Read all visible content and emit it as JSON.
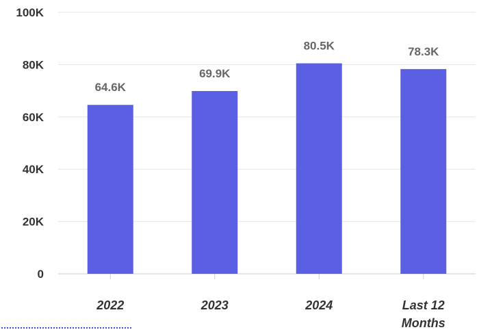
{
  "chart_data": {
    "type": "bar",
    "categories": [
      "2022",
      "2023",
      "2024",
      [
        "Last 12",
        "Months"
      ]
    ],
    "values": [
      64.6,
      69.9,
      80.5,
      78.3
    ],
    "data_labels": [
      "64.6K",
      "69.9K",
      "80.5K",
      "78.3K"
    ],
    "y_ticks": [
      "0",
      "20K",
      "40K",
      "60K",
      "80K",
      "100K"
    ],
    "y_tick_values": [
      0,
      20,
      40,
      60,
      80,
      100
    ],
    "ylim": [
      0,
      100
    ],
    "title": "",
    "xlabel": "",
    "ylabel": "",
    "grid": true,
    "legend": "none"
  },
  "colors": {
    "bar": "#5b5fe3"
  }
}
